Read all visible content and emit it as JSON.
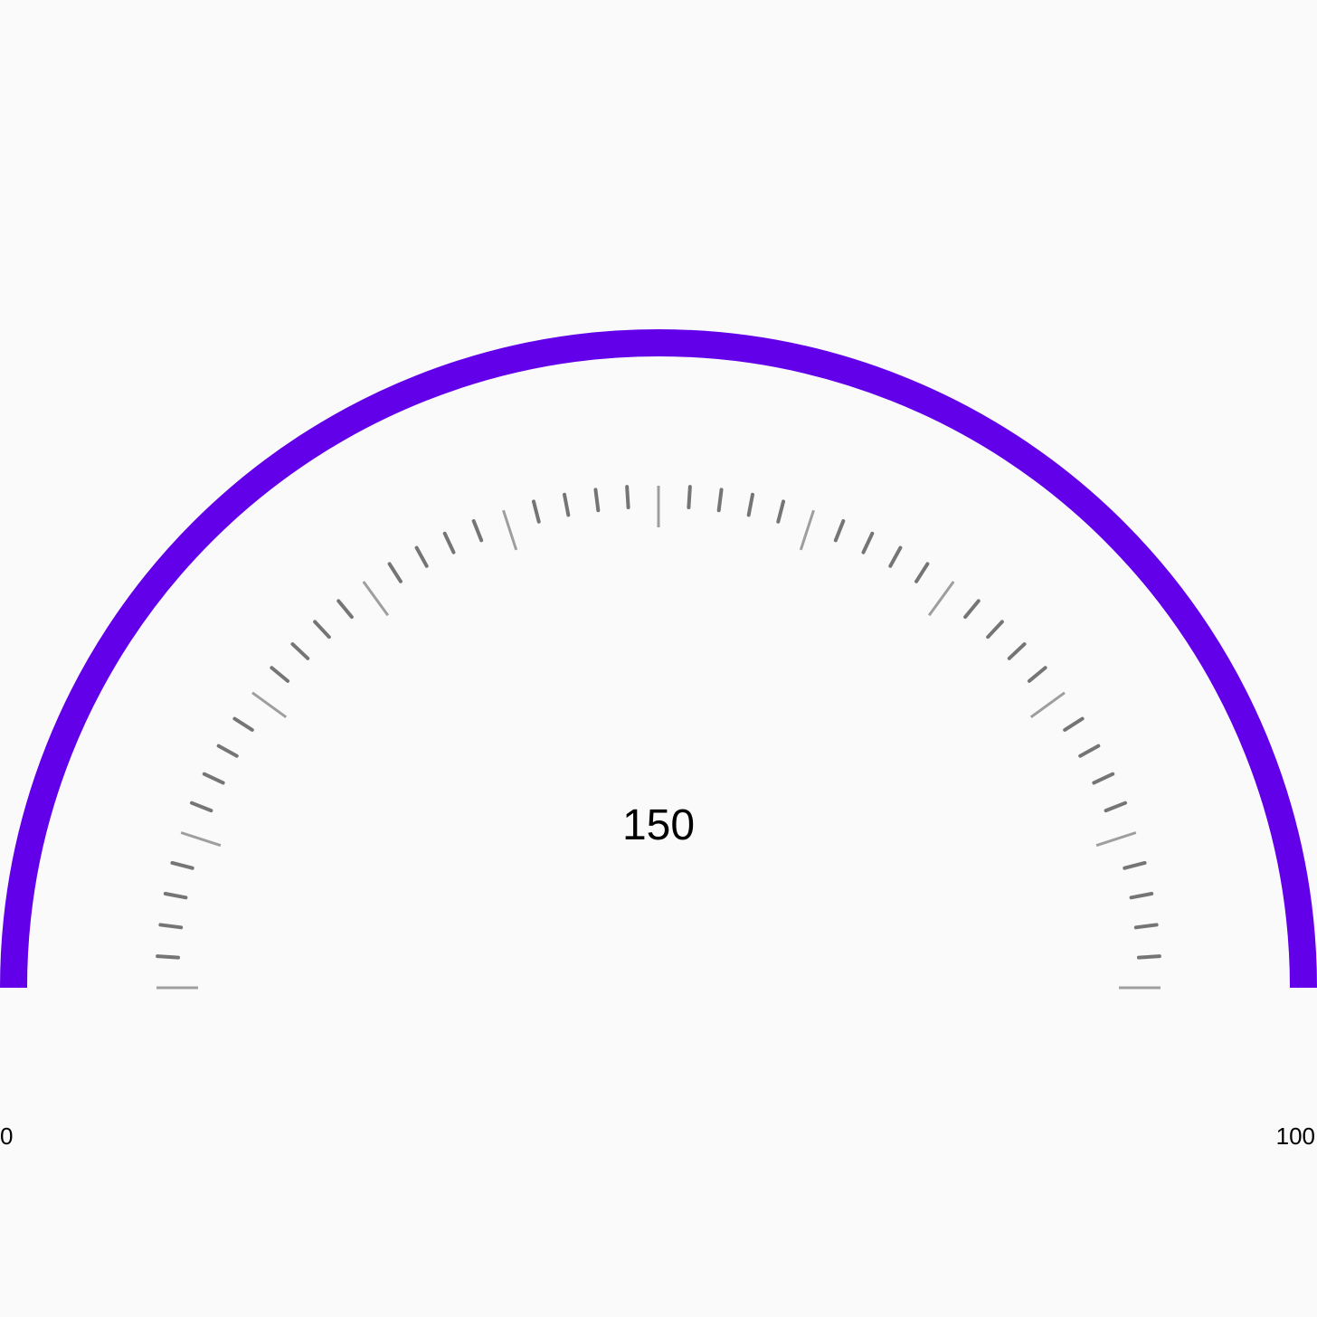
{
  "gauge": {
    "value": 150,
    "value_text": "150",
    "min_label": "0",
    "max_label": "100",
    "major_tick_count": 10,
    "minor_per_major": 4,
    "arc_color": "#6200EA",
    "major_tick_color": "#9e9e9e",
    "minor_tick_color": "#757575",
    "label_color": "#000000",
    "background": "#fafafa"
  }
}
